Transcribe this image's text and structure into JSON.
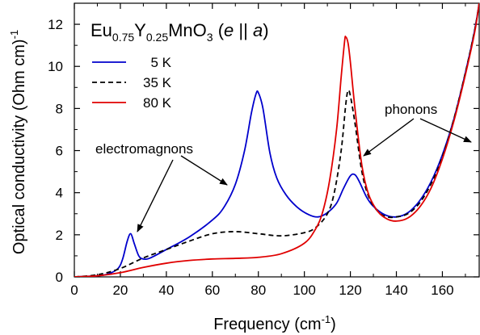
{
  "chart_data": {
    "type": "line",
    "title_parts": {
      "t1": "Eu",
      "s1": "0.75",
      "t2": "Y",
      "s2": "0.25",
      "t3": "MnO",
      "s3": "3",
      "t4": " (",
      "t5": "e",
      "t6": " || ",
      "t7": "a",
      "t8": ")"
    },
    "xlabel_main": "Frequency (cm",
    "xlabel_sup": "-1",
    "xlabel_end": ")",
    "ylabel_main": "Optical conductivity (Ohm cm)",
    "ylabel_sup": "-1",
    "xlim": [
      0,
      176
    ],
    "ylim": [
      0,
      13
    ],
    "xticks": [
      0,
      20,
      40,
      60,
      80,
      100,
      120,
      140,
      160
    ],
    "yticks": [
      0,
      2,
      4,
      6,
      8,
      10,
      12
    ],
    "legend_position": "top-left",
    "annotations": {
      "electromagnons": "electromagnons",
      "phonons": "phonons"
    },
    "series": [
      {
        "name": "5 K",
        "color": "#0000cc",
        "dash": "solid",
        "points": [
          [
            0,
            0
          ],
          [
            10,
            0.05
          ],
          [
            15,
            0.15
          ],
          [
            19,
            0.4
          ],
          [
            21,
            0.85
          ],
          [
            23,
            1.7
          ],
          [
            24.5,
            2.05
          ],
          [
            26,
            1.6
          ],
          [
            28,
            1.0
          ],
          [
            30,
            0.85
          ],
          [
            33,
            0.9
          ],
          [
            40,
            1.3
          ],
          [
            50,
            1.9
          ],
          [
            60,
            2.7
          ],
          [
            65,
            3.3
          ],
          [
            70,
            4.4
          ],
          [
            74,
            6.0
          ],
          [
            77,
            7.8
          ],
          [
            79,
            8.7
          ],
          [
            80,
            8.75
          ],
          [
            82,
            8.0
          ],
          [
            85,
            5.9
          ],
          [
            88,
            4.7
          ],
          [
            92,
            3.9
          ],
          [
            97,
            3.3
          ],
          [
            102,
            2.95
          ],
          [
            106,
            2.85
          ],
          [
            110,
            3.05
          ],
          [
            114,
            3.5
          ],
          [
            117,
            4.2
          ],
          [
            120,
            4.8
          ],
          [
            122,
            4.85
          ],
          [
            124,
            4.5
          ],
          [
            127,
            3.8
          ],
          [
            130,
            3.35
          ],
          [
            135,
            2.95
          ],
          [
            140,
            2.85
          ],
          [
            145,
            3.05
          ],
          [
            150,
            3.6
          ],
          [
            155,
            4.5
          ],
          [
            160,
            5.8
          ],
          [
            165,
            7.5
          ],
          [
            170,
            9.7
          ],
          [
            174,
            11.7
          ],
          [
            176,
            13
          ]
        ]
      },
      {
        "name": "35 K",
        "color": "#000000",
        "dash": "dashed",
        "points": [
          [
            0,
            0
          ],
          [
            10,
            0.1
          ],
          [
            20,
            0.4
          ],
          [
            30,
            0.9
          ],
          [
            40,
            1.3
          ],
          [
            50,
            1.7
          ],
          [
            60,
            2.05
          ],
          [
            70,
            2.15
          ],
          [
            80,
            2.05
          ],
          [
            90,
            1.95
          ],
          [
            100,
            2.1
          ],
          [
            105,
            2.35
          ],
          [
            110,
            3.0
          ],
          [
            113,
            4.0
          ],
          [
            116,
            6.0
          ],
          [
            118,
            8.2
          ],
          [
            119,
            8.85
          ],
          [
            120,
            8.6
          ],
          [
            122,
            7.3
          ],
          [
            125,
            5.0
          ],
          [
            128,
            3.8
          ],
          [
            132,
            3.1
          ],
          [
            136,
            2.85
          ],
          [
            140,
            2.85
          ],
          [
            145,
            3.0
          ],
          [
            150,
            3.5
          ],
          [
            155,
            4.4
          ],
          [
            160,
            5.7
          ],
          [
            165,
            7.5
          ],
          [
            170,
            9.7
          ],
          [
            174,
            11.7
          ],
          [
            176,
            13
          ]
        ]
      },
      {
        "name": "80 K",
        "color": "#e00000",
        "dash": "solid",
        "points": [
          [
            0,
            0
          ],
          [
            10,
            0.05
          ],
          [
            20,
            0.2
          ],
          [
            30,
            0.45
          ],
          [
            40,
            0.65
          ],
          [
            50,
            0.78
          ],
          [
            60,
            0.85
          ],
          [
            70,
            0.88
          ],
          [
            80,
            0.93
          ],
          [
            90,
            1.1
          ],
          [
            100,
            1.6
          ],
          [
            105,
            2.3
          ],
          [
            108,
            3.1
          ],
          [
            111,
            4.6
          ],
          [
            114,
            7.0
          ],
          [
            116,
            9.5
          ],
          [
            117.5,
            11.2
          ],
          [
            118,
            11.4
          ],
          [
            119,
            11.1
          ],
          [
            120,
            10.2
          ],
          [
            122,
            8.0
          ],
          [
            125,
            5.3
          ],
          [
            128,
            3.9
          ],
          [
            132,
            3.1
          ],
          [
            136,
            2.75
          ],
          [
            140,
            2.65
          ],
          [
            145,
            2.8
          ],
          [
            150,
            3.3
          ],
          [
            155,
            4.2
          ],
          [
            160,
            5.6
          ],
          [
            165,
            7.4
          ],
          [
            170,
            9.6
          ],
          [
            174,
            11.6
          ],
          [
            176,
            13
          ]
        ]
      }
    ]
  }
}
